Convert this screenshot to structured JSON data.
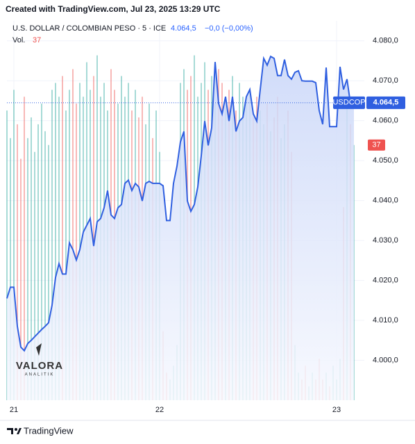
{
  "header": {
    "credit": "Created with TradingView.com, Jul 23, 2025 13:29 UTC",
    "change": "−0,0 (−0,00%)",
    "volume_label": "Vol.",
    "symbol_tag": "USDCOP"
  },
  "watermark": {
    "title": "VALORA",
    "subtitle": "ANALITIK"
  },
  "footer": {
    "brand": "TradingView"
  },
  "chart_data": {
    "type": "line",
    "title": "U.S. DOLLAR / COLOMBIAN PESO · 5 · ICE",
    "categories": [
      null,
      null,
      "21",
      null,
      null,
      null,
      null,
      null,
      null,
      null,
      null,
      null,
      null,
      null,
      null,
      null,
      null,
      null,
      null,
      null,
      null,
      null,
      null,
      null,
      null,
      null,
      null,
      null,
      null,
      null,
      null,
      null,
      null,
      null,
      null,
      null,
      null,
      null,
      null,
      null,
      null,
      null,
      null,
      null,
      "22",
      null,
      null,
      null,
      null,
      null,
      null,
      null,
      null,
      null,
      null,
      null,
      null,
      null,
      null,
      null,
      null,
      null,
      null,
      null,
      null,
      null,
      null,
      null,
      null,
      null,
      null,
      null,
      null,
      null,
      null,
      null,
      null,
      null,
      null,
      null,
      null,
      null,
      null,
      null,
      null,
      null,
      null,
      null,
      null,
      null,
      null,
      null,
      null,
      null,
      null,
      "23",
      null,
      null,
      null,
      null,
      null
    ],
    "series": [
      {
        "name": "USDCOP",
        "color": "#2f5fe0",
        "values": [
          4015.5,
          4018.3,
          4018.3,
          4008.5,
          4003.3,
          4002.4,
          4004.2,
          4005.0,
          4005.9,
          4006.8,
          4007.7,
          4008.5,
          4009.4,
          4013.8,
          4020.7,
          4024.2,
          4021.6,
          4021.6,
          4029.4,
          4027.7,
          4025.1,
          4027.7,
          4032.1,
          4033.8,
          4035.5,
          4028.6,
          4034.7,
          4035.5,
          4038.2,
          4042.5,
          4036.4,
          4035.5,
          4038.2,
          4039.0,
          4044.3,
          4045.1,
          4042.5,
          4044.3,
          4043.4,
          4039.9,
          4044.3,
          4044.8,
          4044.3,
          4044.3,
          4044.3,
          4043.7,
          4035.0,
          4035.0,
          4044.3,
          4048.6,
          4054.7,
          4057.3,
          4039.9,
          4037.3,
          4039.0,
          4043.4,
          4051.2,
          4059.9,
          4053.8,
          4058.2,
          4074.7,
          4064.3,
          4061.7,
          4066.0,
          4059.9,
          4066.0,
          4057.3,
          4059.9,
          4060.8,
          4066.0,
          4067.8,
          4061.7,
          4059.9,
          4067.8,
          4075.6,
          4073.9,
          4076.1,
          4075.6,
          4071.3,
          4071.3,
          4075.3,
          4071.3,
          4070.4,
          4072.1,
          4072.5,
          4070.0,
          4069.9,
          4069.9,
          4069.9,
          4069.5,
          4062.5,
          4059.1,
          4073.3,
          4058.5,
          4058.5,
          4058.5,
          4073.5,
          4067.8,
          4070.4,
          4064.3,
          4064.5
        ],
        "value_labels": [
          null,
          null,
          null,
          null,
          null,
          null,
          null,
          null,
          null,
          null,
          null,
          null,
          null,
          null,
          null,
          null,
          null,
          null,
          null,
          null,
          null,
          null,
          null,
          null,
          null,
          null,
          null,
          null,
          null,
          null,
          null,
          null,
          null,
          null,
          null,
          null,
          null,
          null,
          null,
          null,
          null,
          null,
          null,
          null,
          null,
          null,
          null,
          null,
          null,
          null,
          null,
          null,
          null,
          null,
          null,
          null,
          null,
          null,
          null,
          null,
          null,
          null,
          null,
          null,
          null,
          null,
          null,
          null,
          null,
          null,
          null,
          null,
          null,
          null,
          null,
          null,
          null,
          null,
          null,
          null,
          null,
          null,
          null,
          null,
          null,
          null,
          null,
          null,
          null,
          null,
          null,
          null,
          null,
          null,
          null,
          null,
          null,
          null,
          null,
          null,
          "4.064,5"
        ]
      },
      {
        "name": "Vol.",
        "axis": "y2",
        "up_color": "#26a69a",
        "down_color": "#ef5350",
        "values": [
          42,
          38,
          45,
          40,
          35,
          44,
          38,
          41,
          36,
          40,
          43,
          39,
          37,
          45,
          46,
          44,
          47,
          42,
          45,
          48,
          43,
          46,
          44,
          49,
          45,
          47,
          50,
          44,
          46,
          42,
          48,
          45,
          43,
          47,
          44,
          46,
          42,
          45,
          41,
          44,
          40,
          43,
          38,
          42,
          36,
          10,
          4,
          3,
          5,
          8,
          46,
          48,
          45,
          47,
          50,
          44,
          46,
          49,
          45,
          47,
          43,
          48,
          46,
          44,
          45,
          47,
          42,
          46,
          44,
          43,
          45,
          41,
          44,
          42,
          40,
          43,
          39,
          41,
          44,
          38,
          40,
          42,
          36,
          8,
          4,
          3,
          5,
          2,
          4,
          3,
          6,
          3,
          4,
          2,
          5,
          3,
          6,
          28,
          44,
          40,
          37
        ]
      }
    ],
    "ylim": [
      3990,
      4085
    ],
    "yticks": [
      {
        "value": 4000,
        "label": "4.000,0"
      },
      {
        "value": 4010,
        "label": "4.010,0"
      },
      {
        "value": 4020,
        "label": "4.020,0"
      },
      {
        "value": 4030,
        "label": "4.030,0"
      },
      {
        "value": 4040,
        "label": "4.040,0"
      },
      {
        "value": 4050,
        "label": "4.050,0"
      },
      {
        "value": 4060,
        "label": "4.060,0"
      },
      {
        "value": 4070,
        "label": "4.070,0"
      },
      {
        "value": 4080,
        "label": "4.080,0"
      }
    ],
    "y2lim": [
      0,
      55
    ],
    "grid": true
  }
}
